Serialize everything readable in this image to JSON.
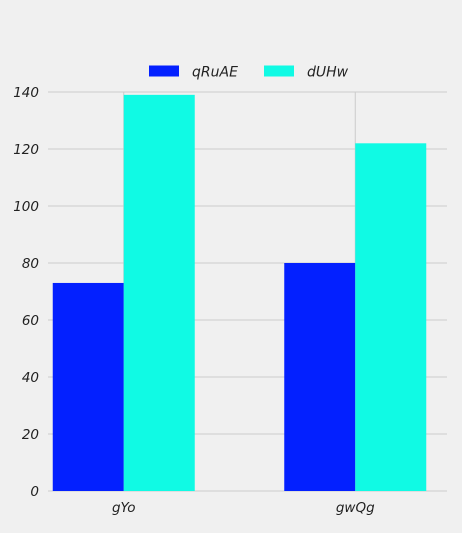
{
  "chart_data": {
    "type": "bar",
    "categories": [
      "gYo",
      "gwQg"
    ],
    "series": [
      {
        "name": "qRuAE",
        "values": [
          73,
          80
        ],
        "color": "#0320ff"
      },
      {
        "name": "dUHw",
        "values": [
          139,
          122
        ],
        "color": "#10fae4"
      }
    ],
    "ylim": [
      0,
      140
    ],
    "yticks": [
      0,
      20,
      40,
      60,
      80,
      100,
      120,
      140
    ],
    "grid": true,
    "legend": "top-center",
    "title": "",
    "xlabel": "",
    "ylabel": ""
  }
}
